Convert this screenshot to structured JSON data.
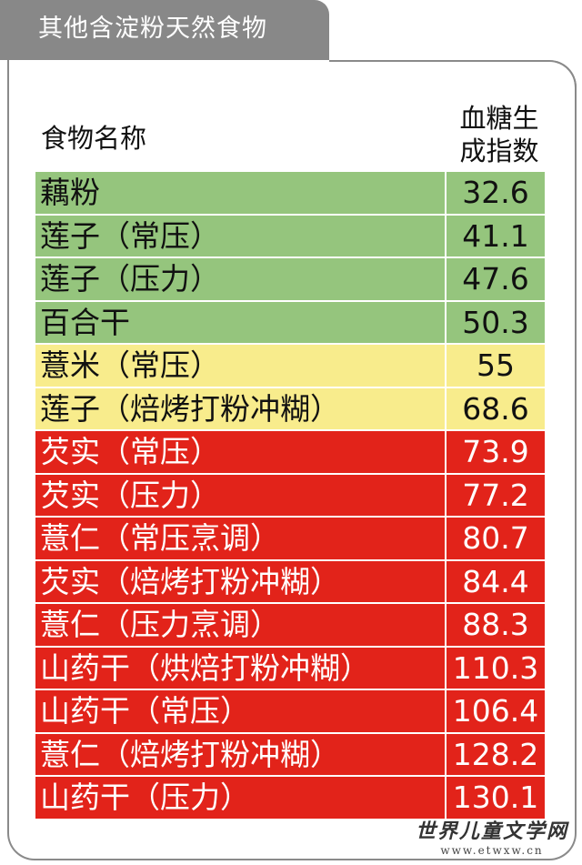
{
  "page_title": "其他含淀粉天然食物",
  "chart_data": {
    "type": "table",
    "columns": [
      "食物名称",
      [
        "血糖生",
        "成指数"
      ]
    ],
    "rows": [
      {
        "name": "藕粉",
        "value": "32.6",
        "level": "green"
      },
      {
        "name": "莲子（常压）",
        "value": "41.1",
        "level": "green"
      },
      {
        "name": "莲子（压力）",
        "value": "47.6",
        "level": "green"
      },
      {
        "name": "百合干",
        "value": "50.3",
        "level": "green"
      },
      {
        "name": "薏米（常压）",
        "value": "55",
        "level": "yellow"
      },
      {
        "name": "莲子（焙烤打粉冲糊）",
        "value": "68.6",
        "level": "yellow"
      },
      {
        "name": "芡实（常压）",
        "value": "73.9",
        "level": "red"
      },
      {
        "name": "芡实（压力）",
        "value": "77.2",
        "level": "red"
      },
      {
        "name": "薏仁（常压烹调）",
        "value": "80.7",
        "level": "red"
      },
      {
        "name": "芡实（焙烤打粉冲糊）",
        "value": "84.4",
        "level": "red"
      },
      {
        "name": "薏仁（压力烹调）",
        "value": "88.3",
        "level": "red"
      },
      {
        "name": "山药干（烘焙打粉冲糊）",
        "value": "110.3",
        "level": "red"
      },
      {
        "name": "山药干（常压）",
        "value": "106.4",
        "level": "red"
      },
      {
        "name": "薏仁（焙烤打粉冲糊）",
        "value": "128.2",
        "level": "red"
      },
      {
        "name": "山药干（压力）",
        "value": "130.1",
        "level": "red"
      }
    ],
    "colors": {
      "green": "#95c57d",
      "yellow": "#f8ec8c",
      "red": "#e2231a"
    }
  },
  "watermark": {
    "line1": "世界儿童文学网",
    "line2": "www.etwxw.cn"
  }
}
